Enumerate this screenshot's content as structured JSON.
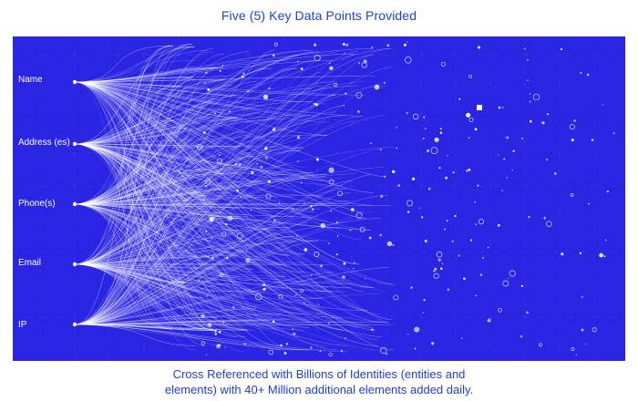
{
  "title": "Five (5) Key Data Points Provided",
  "data_points": [
    {
      "label": "Name"
    },
    {
      "label": "Address (es)"
    },
    {
      "label": "Phone(s)"
    },
    {
      "label": "Email"
    },
    {
      "label": "IP"
    }
  ],
  "caption": {
    "line1": "Cross Referenced with Billions of Identities (entities and",
    "line2": "elements) with 40+ Million additional elements added daily."
  },
  "colors": {
    "title_text": "#1f3fd1",
    "panel_background": "#2a24e3",
    "network_lines": "#ffffff"
  }
}
